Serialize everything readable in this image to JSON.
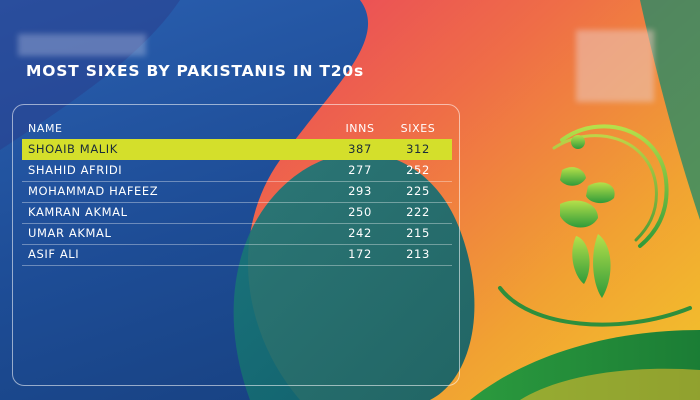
{
  "title": "MOST SIXES BY PAKISTANIS IN T20s",
  "table": {
    "headers": {
      "name": "NAME",
      "inns": "INNS",
      "sixes": "SIXES"
    },
    "rows": [
      {
        "name": "SHOAIB MALIK",
        "inns": "387",
        "sixes": "312",
        "highlighted": true
      },
      {
        "name": "SHAHID AFRIDI",
        "inns": "277",
        "sixes": "252"
      },
      {
        "name": "MOHAMMAD HAFEEZ",
        "inns": "293",
        "sixes": "225"
      },
      {
        "name": "KAMRAN AKMAL",
        "inns": "250",
        "sixes": "222"
      },
      {
        "name": "UMAR AKMAL",
        "inns": "242",
        "sixes": "215"
      },
      {
        "name": "ASIF ALI",
        "inns": "172",
        "sixes": "213"
      }
    ]
  },
  "colors": {
    "highlight": "#d4df2b",
    "background_blue": "#1f4f9a",
    "accent_orange": "#ef6b4a",
    "accent_yellow": "#f2c02a",
    "accent_green": "#2f9b4e"
  },
  "icons": {
    "logo": "cricket-player-logo"
  }
}
